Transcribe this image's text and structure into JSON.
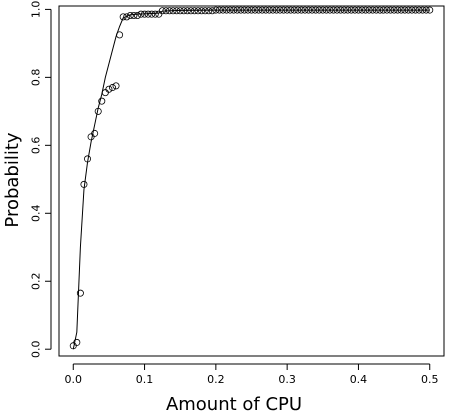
{
  "chart_data": {
    "type": "scatter",
    "title": "",
    "xlabel": "Amount of CPU",
    "ylabel": "Probability",
    "xlim": [
      -0.02,
      0.52
    ],
    "ylim": [
      -0.02,
      1.01
    ],
    "xticks": [
      0.0,
      0.1,
      0.2,
      0.3,
      0.4,
      0.5
    ],
    "xtick_labels": [
      "0.0",
      "0.1",
      "0.2",
      "0.3",
      "0.4",
      "0.5"
    ],
    "yticks": [
      0.0,
      0.2,
      0.4,
      0.6,
      0.8,
      1.0
    ],
    "ytick_labels": [
      "0.0",
      "0.2",
      "0.4",
      "0.6",
      "0.8",
      "1.0"
    ],
    "grid": false,
    "series": [
      {
        "kind": "points",
        "x": [
          0.0,
          0.005,
          0.01,
          0.015,
          0.02,
          0.025,
          0.03,
          0.035,
          0.04,
          0.045,
          0.05,
          0.055,
          0.06,
          0.065,
          0.07,
          0.075,
          0.08,
          0.085,
          0.09,
          0.095,
          0.1,
          0.105,
          0.11,
          0.115,
          0.12,
          0.125,
          0.13,
          0.135,
          0.14,
          0.145,
          0.15,
          0.155,
          0.16,
          0.165,
          0.17,
          0.175,
          0.18,
          0.185,
          0.19,
          0.195,
          0.2,
          0.205,
          0.21,
          0.215,
          0.22,
          0.225,
          0.23,
          0.235,
          0.24,
          0.245,
          0.25,
          0.255,
          0.26,
          0.265,
          0.27,
          0.275,
          0.28,
          0.285,
          0.29,
          0.295,
          0.3,
          0.305,
          0.31,
          0.315,
          0.32,
          0.325,
          0.33,
          0.335,
          0.34,
          0.345,
          0.35,
          0.355,
          0.36,
          0.365,
          0.37,
          0.375,
          0.38,
          0.385,
          0.39,
          0.395,
          0.4,
          0.405,
          0.41,
          0.415,
          0.42,
          0.425,
          0.43,
          0.435,
          0.44,
          0.445,
          0.45,
          0.455,
          0.46,
          0.465,
          0.47,
          0.475,
          0.48,
          0.485,
          0.49,
          0.495,
          0.5
        ],
        "y": [
          0.01,
          0.02,
          0.165,
          0.485,
          0.56,
          0.625,
          0.635,
          0.7,
          0.73,
          0.755,
          0.765,
          0.77,
          0.775,
          0.925,
          0.978,
          0.978,
          0.982,
          0.982,
          0.982,
          0.986,
          0.986,
          0.986,
          0.986,
          0.986,
          0.986,
          0.996,
          0.996,
          0.996,
          0.996,
          0.996,
          0.996,
          0.996,
          0.996,
          0.996,
          0.996,
          0.996,
          0.996,
          0.996,
          0.996,
          0.996,
          0.998,
          0.998,
          0.998,
          0.998,
          0.998,
          0.998,
          0.998,
          0.998,
          0.998,
          0.998,
          0.998,
          0.998,
          0.998,
          0.998,
          0.998,
          0.998,
          0.998,
          0.998,
          0.998,
          0.998,
          0.998,
          0.998,
          0.998,
          0.998,
          0.998,
          0.998,
          0.998,
          0.998,
          0.998,
          0.998,
          0.998,
          0.998,
          0.998,
          0.998,
          0.998,
          0.998,
          0.998,
          0.998,
          0.998,
          0.998,
          0.998,
          0.998,
          0.998,
          0.998,
          0.998,
          0.998,
          0.998,
          0.998,
          0.998,
          0.998,
          0.998,
          0.998,
          0.998,
          0.998,
          0.998,
          0.998,
          0.998,
          0.998,
          0.998,
          0.998,
          0.998
        ]
      },
      {
        "kind": "line",
        "x": [
          0.0,
          0.005,
          0.01,
          0.015,
          0.02,
          0.025,
          0.03,
          0.035,
          0.04,
          0.045,
          0.05,
          0.055,
          0.06,
          0.065,
          0.07,
          0.08,
          0.09,
          0.1,
          0.11,
          0.12,
          0.125,
          0.15,
          0.2,
          0.3,
          0.4,
          0.5
        ],
        "y": [
          0.0,
          0.05,
          0.3,
          0.47,
          0.55,
          0.61,
          0.66,
          0.71,
          0.75,
          0.8,
          0.84,
          0.88,
          0.92,
          0.95,
          0.975,
          0.984,
          0.986,
          0.987,
          0.988,
          0.989,
          0.995,
          0.997,
          0.998,
          0.998,
          0.998,
          0.998
        ]
      }
    ]
  }
}
